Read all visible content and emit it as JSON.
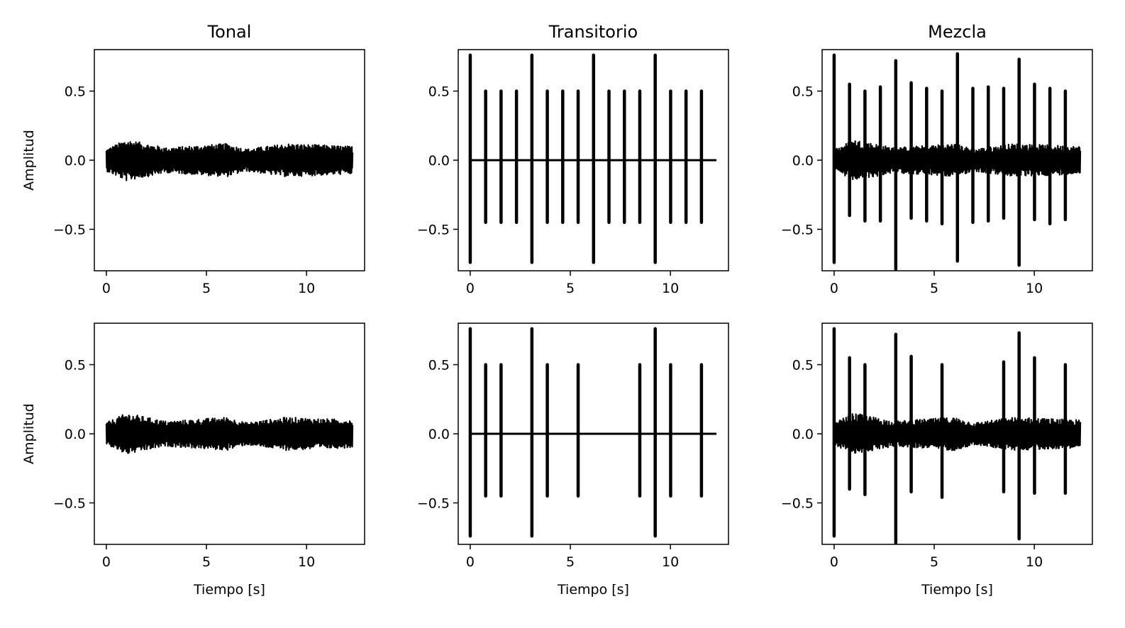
{
  "figure": {
    "rows": 2,
    "cols": 3,
    "line_color": "#000000",
    "background": "#ffffff"
  },
  "chart_data": [
    {
      "id": "tonal-top",
      "type": "line",
      "title": "Tonal",
      "xlabel": "",
      "ylabel": "Amplitud",
      "xlim": [
        -0.6,
        12.9
      ],
      "ylim": [
        -0.8,
        0.8
      ],
      "xticks": [
        0,
        5,
        10
      ],
      "xtick_labels": [
        "0",
        "5",
        "10"
      ],
      "yticks": [
        -0.5,
        0.0,
        0.5
      ],
      "ytick_labels": [
        "−0.5",
        "0.0",
        "0.5"
      ],
      "grid": false,
      "signal": {
        "duration": 12.3,
        "noise_envelope": [
          [
            0,
            0.08
          ],
          [
            1,
            0.15
          ],
          [
            3,
            0.09
          ],
          [
            6,
            0.12
          ],
          [
            7,
            0.08
          ],
          [
            9,
            0.12
          ],
          [
            12.3,
            0.1
          ]
        ],
        "spikes": []
      }
    },
    {
      "id": "transitorio-top",
      "type": "line",
      "title": "Transitorio",
      "xlabel": "",
      "ylabel": "",
      "xlim": [
        -0.6,
        12.9
      ],
      "ylim": [
        -0.8,
        0.8
      ],
      "xticks": [
        0,
        5,
        10
      ],
      "xtick_labels": [
        "0",
        "5",
        "10"
      ],
      "yticks": [
        -0.5,
        0.0,
        0.5
      ],
      "ytick_labels": [
        "−0.5",
        "0.0",
        "0.5"
      ],
      "grid": false,
      "signal": {
        "duration": 12.3,
        "noise_envelope": [],
        "spikes": [
          [
            0.0,
            0.76,
            -0.74
          ],
          [
            0.77,
            0.5,
            -0.45
          ],
          [
            1.54,
            0.5,
            -0.45
          ],
          [
            2.31,
            0.5,
            -0.45
          ],
          [
            3.08,
            0.76,
            -0.74
          ],
          [
            3.85,
            0.5,
            -0.45
          ],
          [
            4.62,
            0.5,
            -0.45
          ],
          [
            5.39,
            0.5,
            -0.45
          ],
          [
            6.16,
            0.76,
            -0.74
          ],
          [
            6.93,
            0.5,
            -0.45
          ],
          [
            7.7,
            0.5,
            -0.45
          ],
          [
            8.47,
            0.5,
            -0.45
          ],
          [
            9.24,
            0.76,
            -0.74
          ],
          [
            10.01,
            0.5,
            -0.45
          ],
          [
            10.78,
            0.5,
            -0.45
          ],
          [
            11.55,
            0.5,
            -0.45
          ]
        ]
      }
    },
    {
      "id": "mezcla-top",
      "type": "line",
      "title": "Mezcla",
      "xlabel": "",
      "ylabel": "",
      "xlim": [
        -0.6,
        12.9
      ],
      "ylim": [
        -0.8,
        0.8
      ],
      "xticks": [
        0,
        5,
        10
      ],
      "xtick_labels": [
        "0",
        "5",
        "10"
      ],
      "yticks": [
        -0.5,
        0.0,
        0.5
      ],
      "ytick_labels": [
        "−0.5",
        "0.0",
        "0.5"
      ],
      "grid": false,
      "signal": {
        "duration": 12.3,
        "noise_envelope": [
          [
            0,
            0.08
          ],
          [
            1,
            0.15
          ],
          [
            3,
            0.09
          ],
          [
            6,
            0.12
          ],
          [
            7,
            0.08
          ],
          [
            9,
            0.12
          ],
          [
            12.3,
            0.1
          ]
        ],
        "spikes": [
          [
            0.0,
            0.76,
            -0.74
          ],
          [
            0.77,
            0.55,
            -0.4
          ],
          [
            1.54,
            0.5,
            -0.44
          ],
          [
            2.31,
            0.53,
            -0.44
          ],
          [
            3.08,
            0.72,
            -0.79
          ],
          [
            3.85,
            0.56,
            -0.42
          ],
          [
            4.62,
            0.52,
            -0.44
          ],
          [
            5.39,
            0.5,
            -0.46
          ],
          [
            6.16,
            0.77,
            -0.73
          ],
          [
            6.93,
            0.52,
            -0.45
          ],
          [
            7.7,
            0.53,
            -0.44
          ],
          [
            8.47,
            0.52,
            -0.42
          ],
          [
            9.24,
            0.73,
            -0.76
          ],
          [
            10.01,
            0.55,
            -0.43
          ],
          [
            10.78,
            0.52,
            -0.46
          ],
          [
            11.55,
            0.5,
            -0.43
          ]
        ]
      }
    },
    {
      "id": "tonal-bottom",
      "type": "line",
      "title": "",
      "xlabel": "Tiempo [s]",
      "ylabel": "Amplitud",
      "xlim": [
        -0.6,
        12.9
      ],
      "ylim": [
        -0.8,
        0.8
      ],
      "xticks": [
        0,
        5,
        10
      ],
      "xtick_labels": [
        "0",
        "5",
        "10"
      ],
      "yticks": [
        -0.5,
        0.0,
        0.5
      ],
      "ytick_labels": [
        "−0.5",
        "0.0",
        "0.5"
      ],
      "grid": false,
      "signal": {
        "duration": 12.3,
        "noise_envelope": [
          [
            0,
            0.08
          ],
          [
            1,
            0.15
          ],
          [
            3,
            0.09
          ],
          [
            6,
            0.12
          ],
          [
            7,
            0.08
          ],
          [
            9,
            0.12
          ],
          [
            12.3,
            0.1
          ]
        ],
        "spikes": []
      }
    },
    {
      "id": "transitorio-bottom",
      "type": "line",
      "title": "",
      "xlabel": "Tiempo [s]",
      "ylabel": "",
      "xlim": [
        -0.6,
        12.9
      ],
      "ylim": [
        -0.8,
        0.8
      ],
      "xticks": [
        0,
        5,
        10
      ],
      "xtick_labels": [
        "0",
        "5",
        "10"
      ],
      "yticks": [
        -0.5,
        0.0,
        0.5
      ],
      "ytick_labels": [
        "−0.5",
        "0.0",
        "0.5"
      ],
      "grid": false,
      "signal": {
        "duration": 12.3,
        "noise_envelope": [],
        "spikes": [
          [
            0.0,
            0.76,
            -0.74
          ],
          [
            0.77,
            0.5,
            -0.45
          ],
          [
            1.54,
            0.5,
            -0.45
          ],
          [
            3.08,
            0.76,
            -0.74
          ],
          [
            3.85,
            0.5,
            -0.45
          ],
          [
            5.39,
            0.5,
            -0.45
          ],
          [
            8.47,
            0.5,
            -0.45
          ],
          [
            9.24,
            0.76,
            -0.74
          ],
          [
            10.01,
            0.5,
            -0.45
          ],
          [
            11.55,
            0.5,
            -0.45
          ]
        ]
      }
    },
    {
      "id": "mezcla-bottom",
      "type": "line",
      "title": "",
      "xlabel": "Tiempo [s]",
      "ylabel": "",
      "xlim": [
        -0.6,
        12.9
      ],
      "ylim": [
        -0.8,
        0.8
      ],
      "xticks": [
        0,
        5,
        10
      ],
      "xtick_labels": [
        "0",
        "5",
        "10"
      ],
      "yticks": [
        -0.5,
        0.0,
        0.5
      ],
      "ytick_labels": [
        "−0.5",
        "0.0",
        "0.5"
      ],
      "grid": false,
      "signal": {
        "duration": 12.3,
        "noise_envelope": [
          [
            0,
            0.08
          ],
          [
            1,
            0.15
          ],
          [
            3,
            0.09
          ],
          [
            6,
            0.12
          ],
          [
            7,
            0.08
          ],
          [
            9,
            0.12
          ],
          [
            12.3,
            0.1
          ]
        ],
        "spikes": [
          [
            0.0,
            0.76,
            -0.74
          ],
          [
            0.77,
            0.55,
            -0.4
          ],
          [
            1.54,
            0.5,
            -0.44
          ],
          [
            3.08,
            0.72,
            -0.79
          ],
          [
            3.85,
            0.56,
            -0.42
          ],
          [
            5.39,
            0.5,
            -0.46
          ],
          [
            8.47,
            0.52,
            -0.42
          ],
          [
            9.24,
            0.73,
            -0.76
          ],
          [
            10.01,
            0.55,
            -0.43
          ],
          [
            11.55,
            0.5,
            -0.43
          ]
        ]
      }
    }
  ]
}
